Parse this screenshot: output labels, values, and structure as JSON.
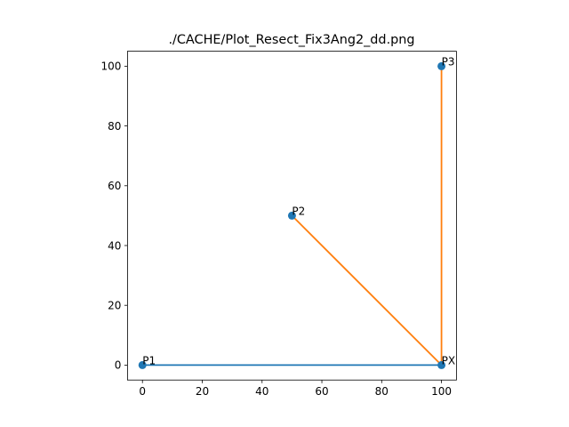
{
  "chart_data": {
    "type": "line",
    "title": "./CACHE/Plot_Resect_Fix3Ang2_dd.png",
    "xlabel": "",
    "ylabel": "",
    "xlim": [
      -5,
      105
    ],
    "ylim": [
      -5,
      105
    ],
    "x_ticks": [
      0,
      20,
      40,
      60,
      80,
      100
    ],
    "y_ticks": [
      0,
      20,
      40,
      60,
      80,
      100
    ],
    "grid": false,
    "points": [
      {
        "label": "P1",
        "x": 0,
        "y": 0
      },
      {
        "label": "P2",
        "x": 50,
        "y": 50
      },
      {
        "label": "P3",
        "x": 100,
        "y": 100
      },
      {
        "label": "PX",
        "x": 100,
        "y": 0
      }
    ],
    "point_color": "#1f77b4",
    "segments": [
      {
        "x": [
          0,
          100
        ],
        "y": [
          0,
          0
        ],
        "color": "#1f77b4"
      },
      {
        "x": [
          50,
          100
        ],
        "y": [
          50,
          0
        ],
        "color": "#ff7f0e"
      },
      {
        "x": [
          100,
          100
        ],
        "y": [
          100,
          0
        ],
        "color": "#ff7f0e"
      }
    ]
  }
}
